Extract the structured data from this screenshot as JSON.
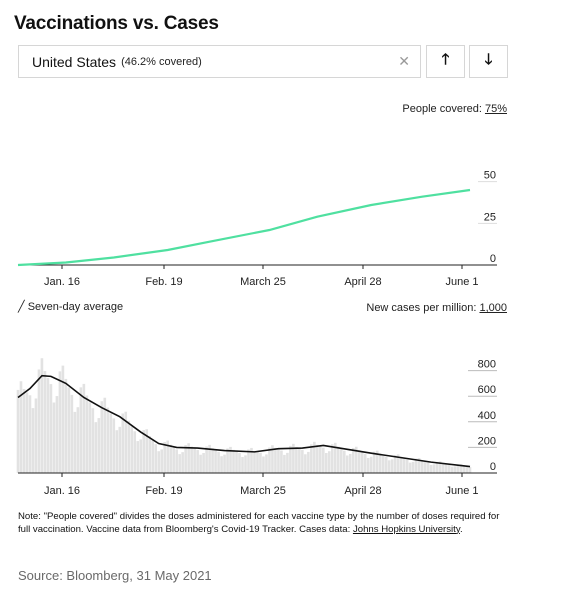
{
  "header": {
    "title": "Vaccinations vs. Cases"
  },
  "selector": {
    "country": "United States",
    "coverage": "(46.2% covered)",
    "clear_icon": "close-icon"
  },
  "controls": {
    "up_icon": "arrow-up-icon",
    "down_icon": "arrow-down-icon",
    "up_label": "🡑",
    "down_label": "🡓"
  },
  "top_chart": {
    "legend_prefix": "People covered: ",
    "legend_value": "75%"
  },
  "bottom_chart": {
    "avg_label": "Seven-day average",
    "right_prefix": "New cases per million: ",
    "right_value": "1,000"
  },
  "note": {
    "text": "Note: \"People covered\" divides the doses administered for each vaccine type by the number of doses required for full vaccination. Vaccine data from Bloomberg's Covid-19 Tracker. Cases data: ",
    "link": "Johns Hopkins University",
    "end": "."
  },
  "source": "Source: Bloomberg, 31 May 2021",
  "colors": {
    "vaccination": "#4fe0a0",
    "cases_bar": "#e2e2e2",
    "average": "#111111"
  },
  "chart_data": [
    {
      "type": "line",
      "x_ticks": [
        "Jan. 16",
        "Feb. 19",
        "March 25",
        "April 28",
        "June 1"
      ],
      "y_ticks": [
        0,
        25,
        50
      ],
      "ylim": [
        0,
        75
      ],
      "series": [
        {
          "values": [
            {
              "x": "2020-12-31",
              "y": 0
            },
            {
              "x": "2021-01-16",
              "y": 1.5
            },
            {
              "x": "2021-02-01",
              "y": 4.5
            },
            {
              "x": "2021-02-19",
              "y": 9
            },
            {
              "x": "2021-03-05",
              "y": 14
            },
            {
              "x": "2021-03-25",
              "y": 21
            },
            {
              "x": "2021-04-10",
              "y": 29
            },
            {
              "x": "2021-04-28",
              "y": 36
            },
            {
              "x": "2021-05-15",
              "y": 41
            },
            {
              "x": "2021-05-31",
              "y": 45
            }
          ]
        }
      ]
    },
    {
      "type": "bar",
      "x_ticks": [
        "Jan. 16",
        "Feb. 19",
        "March 25",
        "April 28",
        "June 1"
      ],
      "y_ticks": [
        0,
        200,
        400,
        600,
        800
      ],
      "ylim": [
        0,
        1000
      ],
      "series": [
        {
          "name": "Seven-day average",
          "type": "line",
          "values": [
            {
              "x": "2020-12-31",
              "y": 590
            },
            {
              "x": "2021-01-04",
              "y": 660
            },
            {
              "x": "2021-01-08",
              "y": 760
            },
            {
              "x": "2021-01-11",
              "y": 755
            },
            {
              "x": "2021-01-16",
              "y": 700
            },
            {
              "x": "2021-01-22",
              "y": 590
            },
            {
              "x": "2021-01-28",
              "y": 510
            },
            {
              "x": "2021-02-03",
              "y": 440
            },
            {
              "x": "2021-02-10",
              "y": 320
            },
            {
              "x": "2021-02-16",
              "y": 230
            },
            {
              "x": "2021-02-22",
              "y": 200
            },
            {
              "x": "2021-03-01",
              "y": 195
            },
            {
              "x": "2021-03-10",
              "y": 175
            },
            {
              "x": "2021-03-20",
              "y": 165
            },
            {
              "x": "2021-03-28",
              "y": 190
            },
            {
              "x": "2021-04-05",
              "y": 195
            },
            {
              "x": "2021-04-12",
              "y": 215
            },
            {
              "x": "2021-04-20",
              "y": 185
            },
            {
              "x": "2021-04-28",
              "y": 155
            },
            {
              "x": "2021-05-08",
              "y": 120
            },
            {
              "x": "2021-05-18",
              "y": 85
            },
            {
              "x": "2021-05-31",
              "y": 50
            }
          ]
        }
      ]
    }
  ]
}
